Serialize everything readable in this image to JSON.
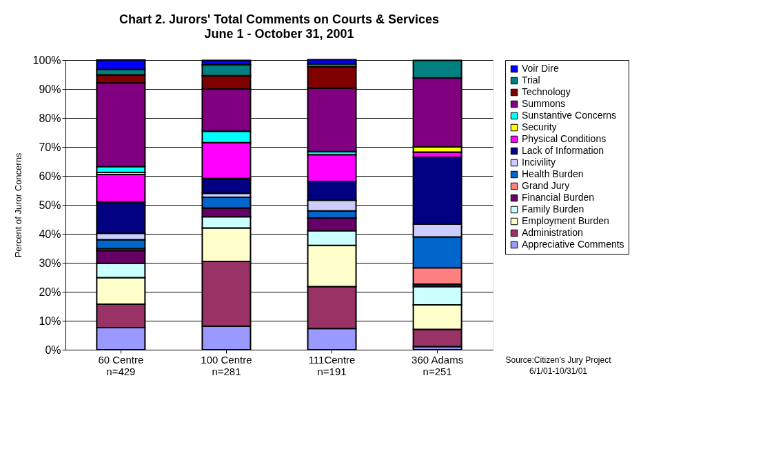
{
  "chart_data": {
    "type": "bar",
    "stacked": true,
    "title": "Chart 2. Jurors' Total Comments on Courts & Services",
    "subtitle": "June 1 - October 31, 2001",
    "ylabel": "Percent of Juror Concerns",
    "categories": [
      "60 Centre\nn=429",
      "100 Centre\nn=281",
      "111Centre\nn=191",
      "360 Adams\nn=251"
    ],
    "series": [
      {
        "name": "Appreciative Comments",
        "color": "#9999ff",
        "values": [
          7.6,
          8.1,
          7.3,
          1.1
        ]
      },
      {
        "name": "Administration",
        "color": "#993366",
        "values": [
          8.1,
          22.4,
          14.5,
          5.9
        ]
      },
      {
        "name": "Employment Burden",
        "color": "#ffffcc",
        "values": [
          9.2,
          11.5,
          14.2,
          8.5
        ]
      },
      {
        "name": "Family Burden",
        "color": "#ccffff",
        "values": [
          4.9,
          3.9,
          5.1,
          6.3
        ]
      },
      {
        "name": "Financial Burden",
        "color": "#660066",
        "values": [
          4.4,
          3.0,
          4.4,
          0.8
        ]
      },
      {
        "name": "Grand Jury",
        "color": "#ff8080",
        "values": [
          0.7,
          null,
          null,
          5.7
        ]
      },
      {
        "name": "Health Burden",
        "color": "#0066cc",
        "values": [
          3.1,
          3.7,
          2.4,
          10.6
        ]
      },
      {
        "name": "Incivility",
        "color": "#ccccff",
        "values": [
          2.2,
          1.4,
          3.7,
          4.5
        ]
      },
      {
        "name": "Lack of Information",
        "color": "#000080",
        "values": [
          10.8,
          5.1,
          6.5,
          23.0
        ]
      },
      {
        "name": "Physical Conditions",
        "color": "#ff00ff",
        "values": [
          9.5,
          12.4,
          9.2,
          1.8
        ]
      },
      {
        "name": "Security",
        "color": "#ffff00",
        "values": [
          0.7,
          null,
          null,
          1.8
        ]
      },
      {
        "name": "Sunstantive Concerns",
        "color": "#00ffff",
        "values": [
          2.0,
          3.9,
          1.1,
          null
        ]
      },
      {
        "name": "Summons",
        "color": "#800080",
        "values": [
          28.9,
          14.6,
          21.9,
          23.8
        ]
      },
      {
        "name": "Technology",
        "color": "#800000",
        "values": [
          2.8,
          4.6,
          7.3,
          null
        ]
      },
      {
        "name": "Trial",
        "color": "#008080",
        "values": [
          1.9,
          3.8,
          1.1,
          6.1
        ]
      },
      {
        "name": "Voir Dire",
        "color": "#0000ff",
        "values": [
          3.2,
          1.5,
          1.4,
          null
        ]
      }
    ],
    "ylim": [
      0,
      100
    ],
    "yticks": [
      {
        "value": 0,
        "label": "0%"
      },
      {
        "value": 10,
        "label": "10%"
      },
      {
        "value": 20,
        "label": "20%"
      },
      {
        "value": 30,
        "label": "30%"
      },
      {
        "value": 40,
        "label": "40%"
      },
      {
        "value": 50,
        "label": "50%"
      },
      {
        "value": 60,
        "label": "60%"
      },
      {
        "value": 70,
        "label": "70%"
      },
      {
        "value": 80,
        "label": "80%"
      },
      {
        "value": 90,
        "label": "90%"
      },
      {
        "value": 100,
        "label": "100%"
      }
    ],
    "grid": "y",
    "legend": "right",
    "annotations": [
      "Source:Citizen's Jury Project",
      "6/1/01-10/31/01"
    ]
  }
}
